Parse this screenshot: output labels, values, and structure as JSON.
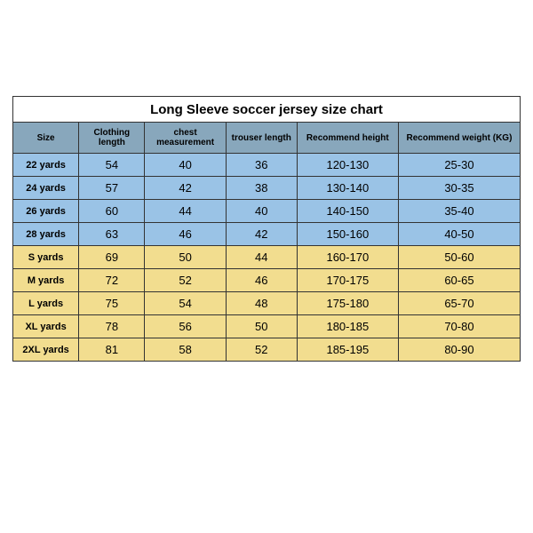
{
  "title": "Long Sleeve soccer jersey size chart",
  "columns": [
    {
      "key": "size",
      "label": "Size"
    },
    {
      "key": "clothing_length",
      "label": "Clothing length"
    },
    {
      "key": "chest",
      "label": "chest measurement"
    },
    {
      "key": "trouser",
      "label": "trouser length"
    },
    {
      "key": "height",
      "label": "Recommend height"
    },
    {
      "key": "weight",
      "label": "Recommend weight (KG)"
    }
  ],
  "rows": [
    {
      "group": "kid",
      "size": "22 yards",
      "clothing_length": "54",
      "chest": "40",
      "trouser": "36",
      "height": "120-130",
      "weight": "25-30"
    },
    {
      "group": "kid",
      "size": "24 yards",
      "clothing_length": "57",
      "chest": "42",
      "trouser": "38",
      "height": "130-140",
      "weight": "30-35"
    },
    {
      "group": "kid",
      "size": "26 yards",
      "clothing_length": "60",
      "chest": "44",
      "trouser": "40",
      "height": "140-150",
      "weight": "35-40"
    },
    {
      "group": "kid",
      "size": "28 yards",
      "clothing_length": "63",
      "chest": "46",
      "trouser": "42",
      "height": "150-160",
      "weight": "40-50"
    },
    {
      "group": "adult",
      "size": "S yards",
      "clothing_length": "69",
      "chest": "50",
      "trouser": "44",
      "height": "160-170",
      "weight": "50-60"
    },
    {
      "group": "adult",
      "size": "M yards",
      "clothing_length": "72",
      "chest": "52",
      "trouser": "46",
      "height": "170-175",
      "weight": "60-65"
    },
    {
      "group": "adult",
      "size": "L yards",
      "clothing_length": "75",
      "chest": "54",
      "trouser": "48",
      "height": "175-180",
      "weight": "65-70"
    },
    {
      "group": "adult",
      "size": "XL yards",
      "clothing_length": "78",
      "chest": "56",
      "trouser": "50",
      "height": "180-185",
      "weight": "70-80"
    },
    {
      "group": "adult",
      "size": "2XL yards",
      "clothing_length": "81",
      "chest": "58",
      "trouser": "52",
      "height": "185-195",
      "weight": "80-90"
    }
  ],
  "colors": {
    "header_bg": "#88a7bc",
    "kid_bg": "#9ac3e6",
    "adult_bg": "#f2dd8f",
    "border": "#333333",
    "page_bg": "#ffffff"
  },
  "col_widths_pct": [
    13,
    13,
    16,
    14,
    20,
    24
  ],
  "fonts": {
    "title_size_pt": 15,
    "title_weight": "bold",
    "header_size_pt": 10,
    "header_weight": "bold",
    "cell_size_pt": 13,
    "size_col_size_pt": 11,
    "size_col_weight": "bold"
  }
}
